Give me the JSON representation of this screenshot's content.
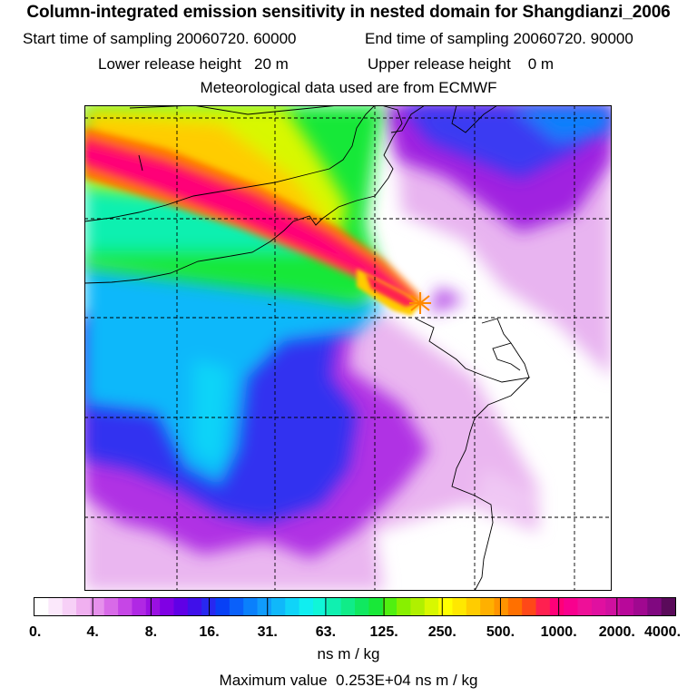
{
  "title": "Column-integrated emission sensitivity in nested domain for Shangdianzi_2006",
  "header": {
    "start_label": "Start time of sampling",
    "start_value": "20060720. 60000",
    "end_label": "End time of sampling",
    "end_value": "20060720. 90000",
    "lower_label": "Lower release height",
    "lower_value": "20 m",
    "upper_label": "Upper release height",
    "upper_value": "0 m",
    "met_line": "Meteorological data used are from ECMWF"
  },
  "colorbar": {
    "ticks": [
      "0.",
      "4.",
      "8.",
      "16.",
      "31.",
      "63.",
      "125.",
      "250.",
      "500.",
      "1000.",
      "2000.",
      "4000."
    ],
    "colors": [
      "#ffffff",
      "#fbe8fb",
      "#f7d0f7",
      "#f0b0f0",
      "#e690ec",
      "#d86ae8",
      "#c646e6",
      "#b028e4",
      "#9a10e2",
      "#8000e4",
      "#6000e6",
      "#4010ea",
      "#2828f0",
      "#0840f6",
      "#0a60fa",
      "#0a80fc",
      "#109cfc",
      "#10b8fa",
      "#10d4f8",
      "#10eef0",
      "#10f6d8",
      "#10f0b0",
      "#10ec88",
      "#10e860",
      "#18e838",
      "#50f010",
      "#88f000",
      "#b0f000",
      "#d8f800",
      "#ffff00",
      "#ffe800",
      "#ffcc00",
      "#ffb000",
      "#ff9400",
      "#ff7000",
      "#ff4818",
      "#ff2050",
      "#ff0078",
      "#f8008e",
      "#ee1098",
      "#e010a0",
      "#d010a0",
      "#b8089a",
      "#a00890",
      "#800880",
      "#5a0a5a"
    ],
    "unit": "ns m / kg"
  },
  "footer": {
    "max_label": "Maximum value",
    "max_value": "0.253E+04",
    "max_unit": "ns m / kg"
  },
  "map": {
    "receptor": "Shangdianzi",
    "marker_icon": "receptor-star-icon"
  }
}
